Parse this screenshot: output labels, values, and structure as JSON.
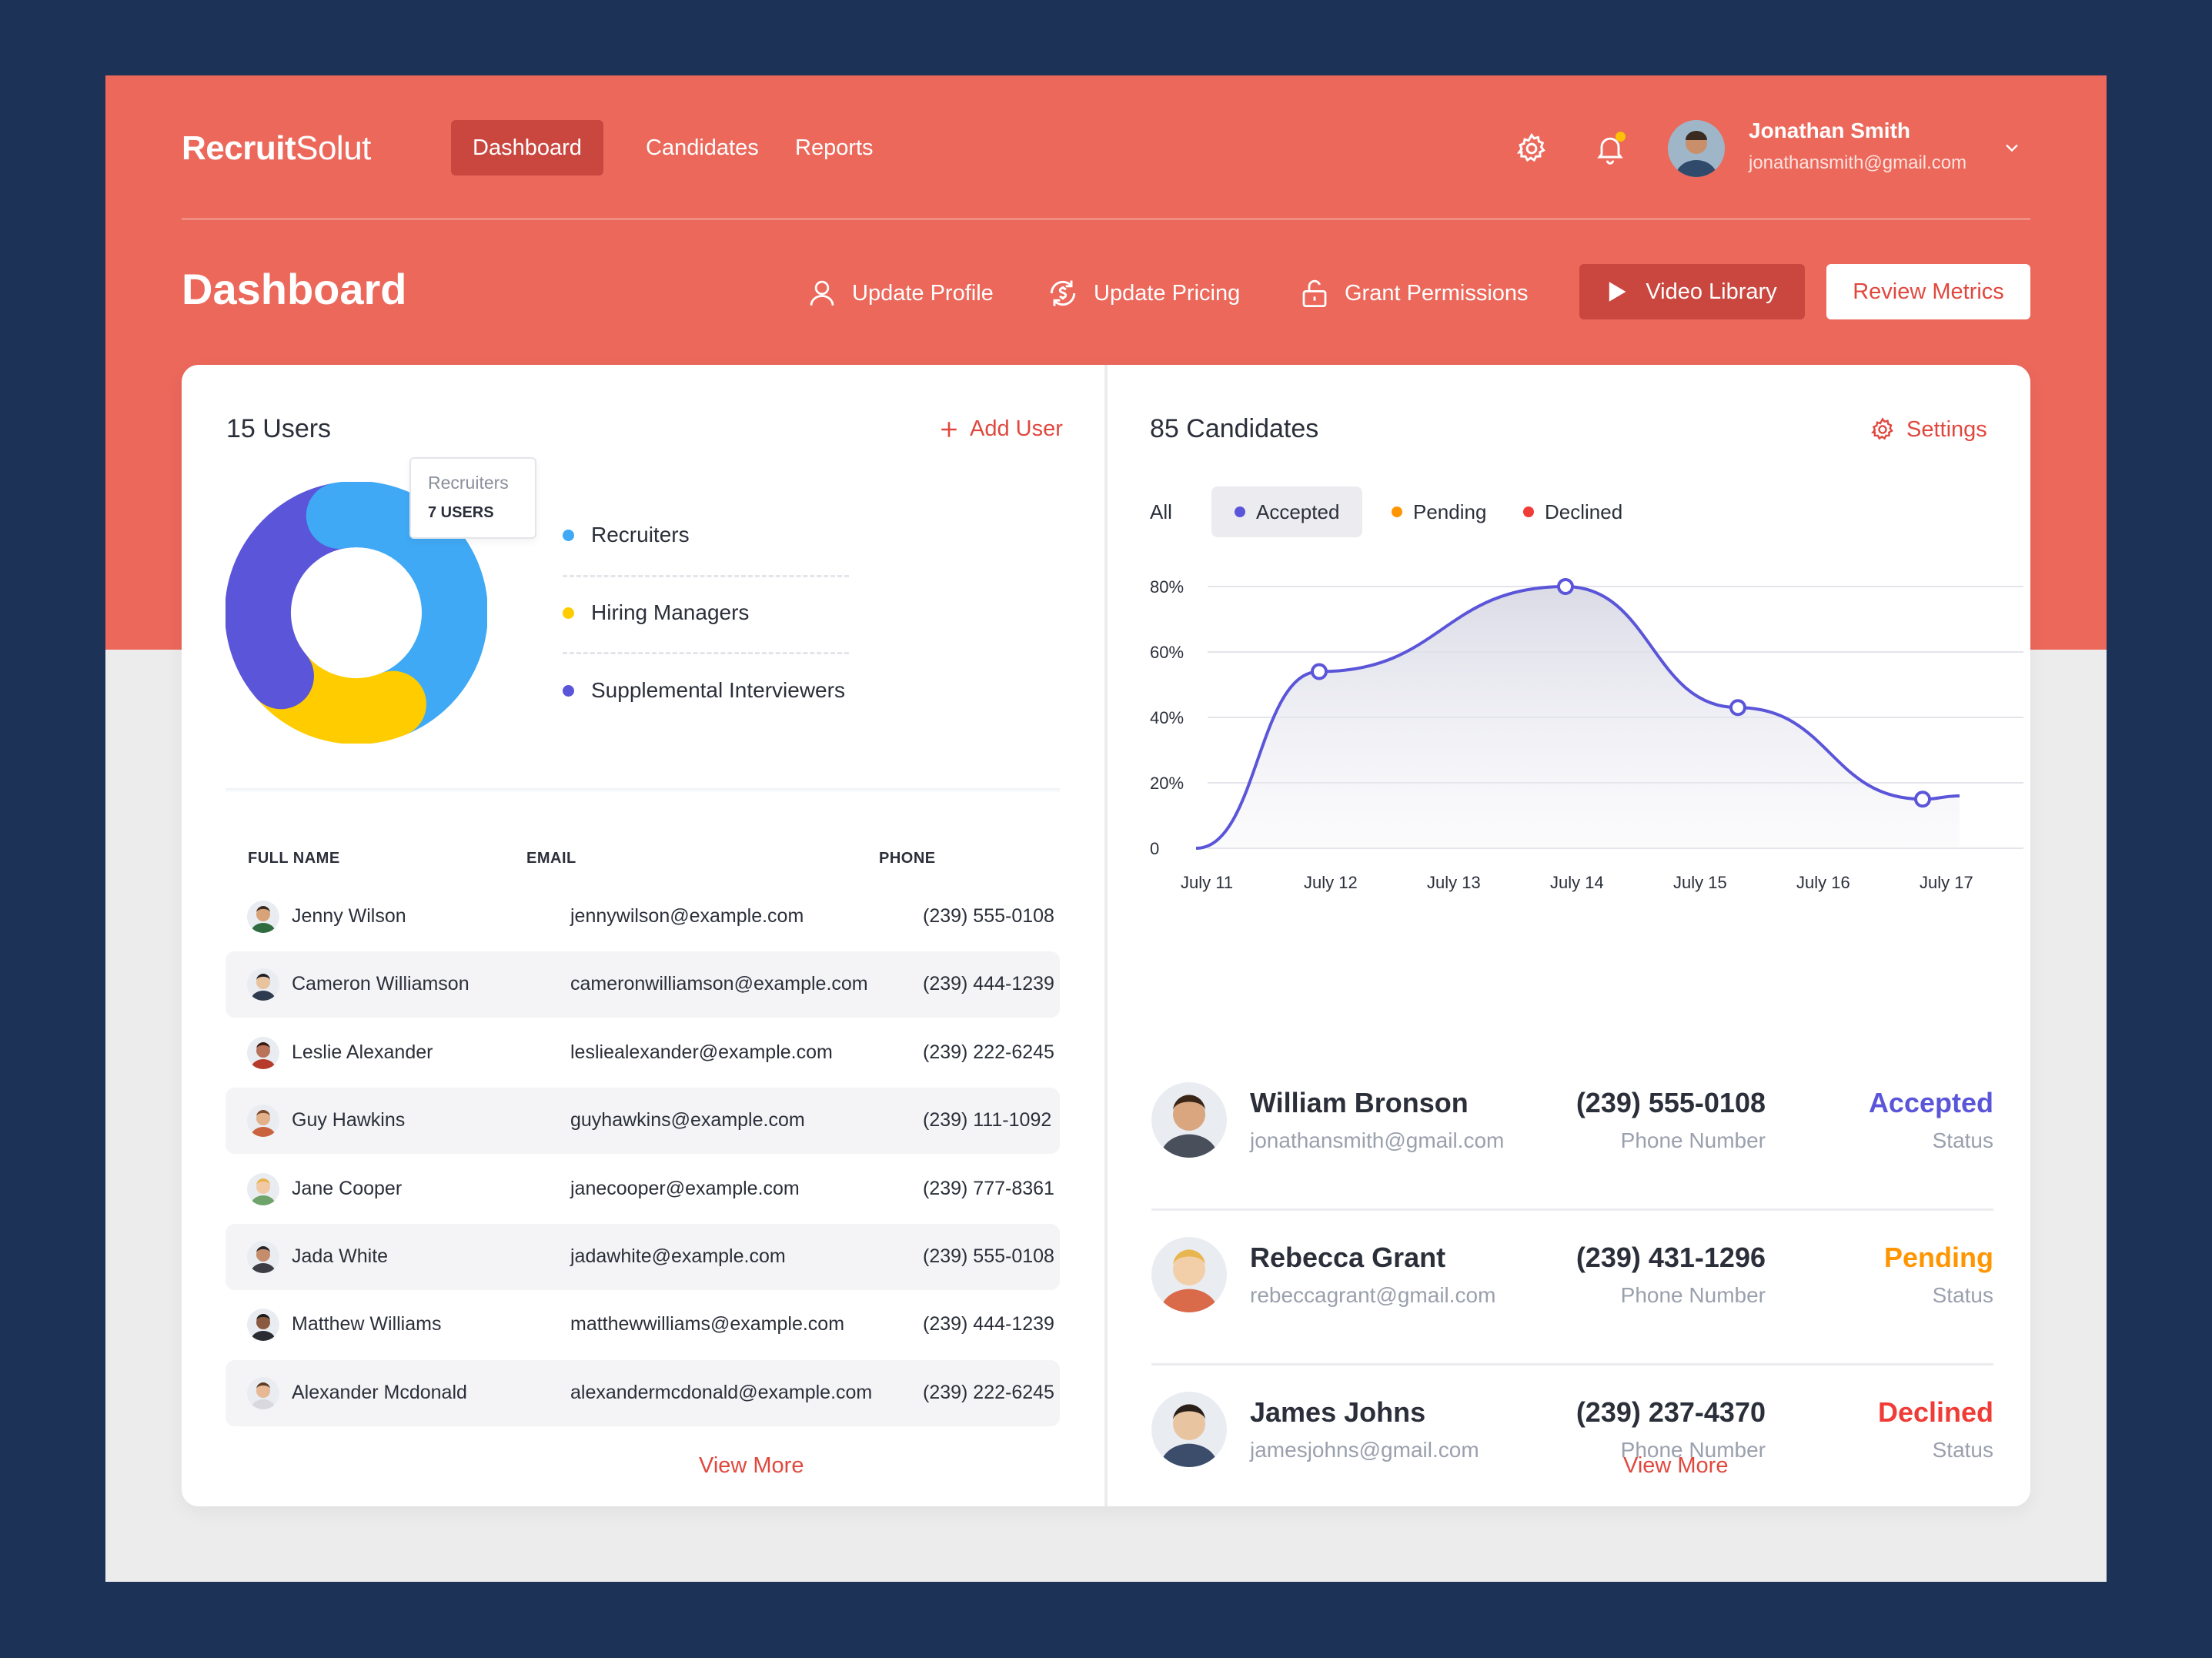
{
  "colors": {
    "page_background": "#1d3257",
    "header": "#eb685b",
    "header_active": "#c9473f",
    "accent_red": "#e0483e",
    "recruiters": "#3fa9f5",
    "hiring_managers": "#ffcc00",
    "supplemental": "#5a55d9",
    "accepted": "#5a55d9",
    "pending": "#ff9500",
    "declined": "#f03c36"
  },
  "app": {
    "logo_bold": "Recruit",
    "logo_light": "Solut"
  },
  "nav": {
    "items": [
      "Dashboard",
      "Candidates",
      "Reports"
    ],
    "active": "Dashboard"
  },
  "header_icons": {
    "settings": "gear-icon",
    "notifications": "bell-icon"
  },
  "user": {
    "name": "Jonathan Smith",
    "email": "jonathansmith@gmail.com"
  },
  "page": {
    "title": "Dashboard"
  },
  "actions": {
    "update_profile": "Update Profile",
    "update_pricing": "Update Pricing",
    "grant_permissions": "Grant Permissions",
    "video_library": "Video Library",
    "review_metrics": "Review Metrics"
  },
  "users_panel": {
    "title": "15 Users",
    "add_label": "Add User",
    "tooltip": {
      "label": "Recruiters",
      "value": "7 USERS"
    },
    "breakdown": [
      {
        "label": "Recruiters",
        "users": 7,
        "color": "#3fa9f5"
      },
      {
        "label": "Hiring Managers",
        "users": 3,
        "color": "#ffcc00"
      },
      {
        "label": "Supplemental Interviewers",
        "users": 5,
        "color": "#5a55d9"
      }
    ],
    "columns": [
      "FULL NAME",
      "EMAIL",
      "PHONE"
    ],
    "rows": [
      {
        "name": "Jenny Wilson",
        "email": "jennywilson@example.com",
        "phone": "(239) 555-0108"
      },
      {
        "name": "Cameron Williamson",
        "email": "cameronwilliamson@example.com",
        "phone": "(239) 444-1239"
      },
      {
        "name": "Leslie Alexander",
        "email": "lesliealexander@example.com",
        "phone": "(239) 222-6245"
      },
      {
        "name": "Guy Hawkins",
        "email": "guyhawkins@example.com",
        "phone": "(239) 111-1092"
      },
      {
        "name": "Jane Cooper",
        "email": "janecooper@example.com",
        "phone": "(239) 777-8361"
      },
      {
        "name": "Jada White",
        "email": "jadawhite@example.com",
        "phone": "(239) 555-0108"
      },
      {
        "name": "Matthew Williams",
        "email": "matthewwilliams@example.com",
        "phone": "(239) 444-1239"
      },
      {
        "name": "Alexander Mcdonald",
        "email": "alexandermcdonald@example.com",
        "phone": "(239) 222-6245"
      }
    ],
    "view_more": "View More"
  },
  "candidates_panel": {
    "title": "85 Candidates",
    "settings_label": "Settings",
    "filters": {
      "all": "All",
      "accepted": "Accepted",
      "pending": "Pending",
      "declined": "Declined",
      "active": "Accepted"
    },
    "candidates": [
      {
        "name": "William Bronson",
        "email": "jonathansmith@gmail.com",
        "phone": "(239) 555-0108",
        "phone_label": "Phone Number",
        "status": "Accepted",
        "status_label": "Status",
        "status_color": "#5a55d9"
      },
      {
        "name": "Rebecca Grant",
        "email": "rebeccagrant@gmail.com",
        "phone": "(239) 431-1296",
        "phone_label": "Phone Number",
        "status": "Pending",
        "status_label": "Status",
        "status_color": "#ff9500"
      },
      {
        "name": "James Johns",
        "email": "jamesjohns@gmail.com",
        "phone": "(239) 237-4370",
        "phone_label": "Phone Number",
        "status": "Declined",
        "status_label": "Status",
        "status_color": "#f03c36"
      }
    ],
    "view_more": "View More"
  },
  "chart_data": {
    "type": "area",
    "series": [
      {
        "values": [
          0,
          54,
          80,
          43,
          15
        ]
      }
    ],
    "points": [
      {
        "x": "July 11",
        "y": 0,
        "marker": false
      },
      {
        "x": "July 12",
        "y": 54,
        "marker": true
      },
      {
        "x": "July 14",
        "y": 80,
        "marker": true
      },
      {
        "x": "July 15.4",
        "y": 43,
        "marker": true
      },
      {
        "x": "July 16.9",
        "y": 15,
        "marker": true
      },
      {
        "x": "July 17.2",
        "y": 16,
        "marker": false
      }
    ],
    "x_ticks": [
      "July 11",
      "July 12",
      "July 13",
      "July 14",
      "July 15",
      "July 16",
      "July 17"
    ],
    "y_ticks": [
      "0",
      "20%",
      "40%",
      "60%",
      "80%"
    ],
    "ylim": [
      0,
      80
    ],
    "grid": true,
    "color": "#5a55d9"
  }
}
